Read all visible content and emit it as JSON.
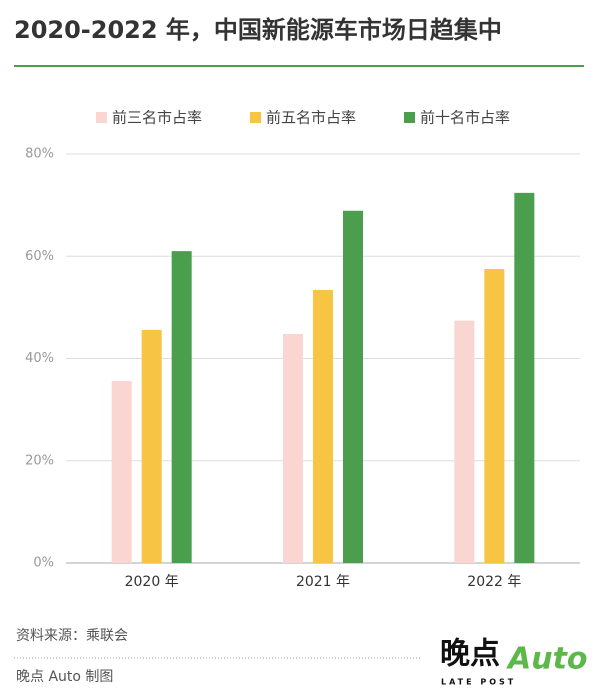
{
  "chart_data": {
    "type": "bar",
    "title": "2020-2022 年，中国新能源车市场日趋集中",
    "categories": [
      "2020 年",
      "2021 年",
      "2022 年"
    ],
    "series": [
      {
        "name": "前三名市占率",
        "color": "#f9d6d1",
        "values": [
          35.6,
          44.8,
          47.4
        ]
      },
      {
        "name": "前五名市占率",
        "color": "#f7c443",
        "values": [
          45.6,
          53.4,
          57.5
        ]
      },
      {
        "name": "前十名市占率",
        "color": "#4b9e4d",
        "values": [
          61,
          68.9,
          72.4
        ]
      }
    ],
    "ylim": [
      0,
      80
    ],
    "yticks": [
      {
        "value": 0,
        "label": "0%"
      },
      {
        "value": 20,
        "label": "20%"
      },
      {
        "value": 40,
        "label": "40%"
      },
      {
        "value": 60,
        "label": "60%"
      },
      {
        "value": 80,
        "label": "80%"
      }
    ],
    "grid": true,
    "source": "资料来源：乘联会",
    "credit": "晚点 Auto 制图",
    "logo": {
      "name": "晚点",
      "sub": "LATE POST",
      "brand": "Auto"
    }
  }
}
